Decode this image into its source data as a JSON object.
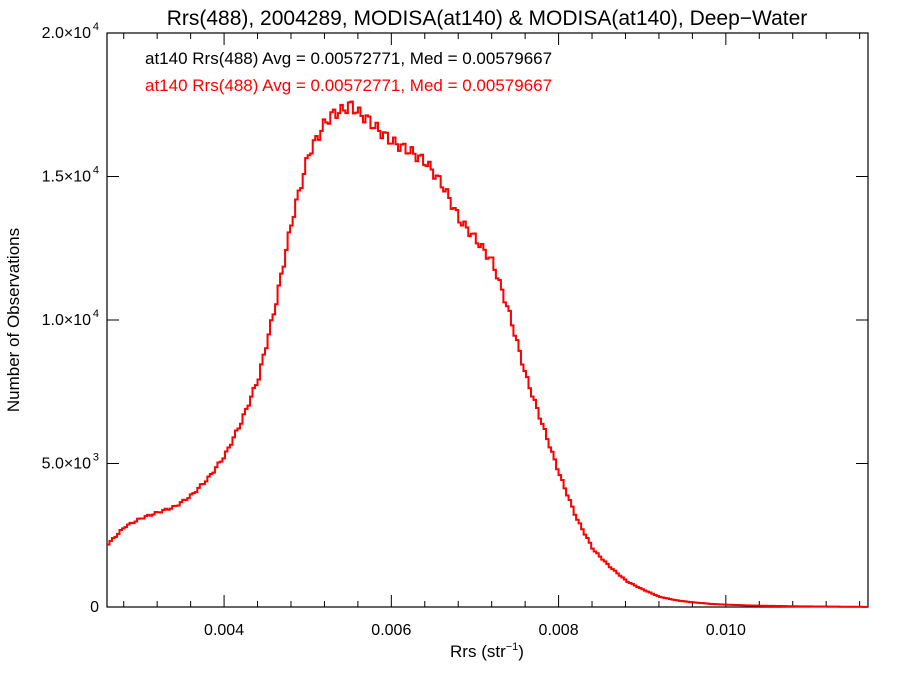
{
  "chart_data": {
    "type": "line",
    "title": "Rrs(488), 2004289, MODISA(at140) & MODISA(at140), Deep−Water",
    "xlabel": "Rrs (str",
    "xlabel_sup": "−1",
    "xlabel_suffix": ")",
    "ylabel": "Number of Observations",
    "xlim": [
      0.0026,
      0.0117
    ],
    "ylim": [
      0,
      20000
    ],
    "xticks": [
      {
        "value": 0.004,
        "label": "0.004"
      },
      {
        "value": 0.006,
        "label": "0.006"
      },
      {
        "value": 0.008,
        "label": "0.008"
      },
      {
        "value": 0.01,
        "label": "0.010"
      }
    ],
    "yticks": [
      {
        "value": 0,
        "label": "0",
        "exp": ""
      },
      {
        "value": 5000,
        "label": "5.0×10",
        "exp": "3"
      },
      {
        "value": 10000,
        "label": "1.0×10",
        "exp": "4"
      },
      {
        "value": 15000,
        "label": "1.5×10",
        "exp": "4"
      },
      {
        "value": 20000,
        "label": "2.0×10",
        "exp": "4"
      }
    ],
    "annotations": [
      {
        "text": "at140 Rrs(488) Avg = 0.00572771, Med = 0.00579667",
        "color": "#000000"
      },
      {
        "text": "at140 Rrs(488) Avg = 0.00572771, Med = 0.00579667",
        "color": "#ff0000"
      }
    ],
    "series": [
      {
        "color": "#000000",
        "x": [
          0.0026,
          0.0028,
          0.003,
          0.0032,
          0.0034,
          0.0036,
          0.0038,
          0.004,
          0.0042,
          0.0044,
          0.0046,
          0.0048,
          0.005,
          0.0052,
          0.0053,
          0.0054,
          0.0055,
          0.0056,
          0.0057,
          0.0058,
          0.006,
          0.0062,
          0.0064,
          0.0066,
          0.0068,
          0.007,
          0.0072,
          0.0074,
          0.0076,
          0.0078,
          0.008,
          0.0082,
          0.0084,
          0.0086,
          0.0088,
          0.009,
          0.0092,
          0.0094,
          0.0096,
          0.0098,
          0.01,
          0.0102,
          0.0104,
          0.0106,
          0.0108,
          0.011,
          0.0112,
          0.0114,
          0.0117
        ],
        "y": [
          2200,
          2800,
          3100,
          3300,
          3500,
          3900,
          4500,
          5300,
          6500,
          8000,
          10500,
          13500,
          15800,
          16900,
          17200,
          17300,
          17500,
          17200,
          17000,
          16700,
          16200,
          15900,
          15500,
          14700,
          13500,
          12800,
          12000,
          10200,
          8000,
          6300,
          4600,
          3100,
          2000,
          1400,
          900,
          600,
          350,
          230,
          160,
          110,
          80,
          60,
          45,
          35,
          25,
          20,
          15,
          10,
          5
        ]
      },
      {
        "color": "#ff0000",
        "x": [
          0.0026,
          0.0028,
          0.003,
          0.0032,
          0.0034,
          0.0036,
          0.0038,
          0.004,
          0.0042,
          0.0044,
          0.0046,
          0.0048,
          0.005,
          0.0052,
          0.0053,
          0.0054,
          0.0055,
          0.0056,
          0.0057,
          0.0058,
          0.006,
          0.0062,
          0.0064,
          0.0066,
          0.0068,
          0.007,
          0.0072,
          0.0074,
          0.0076,
          0.0078,
          0.008,
          0.0082,
          0.0084,
          0.0086,
          0.0088,
          0.009,
          0.0092,
          0.0094,
          0.0096,
          0.0098,
          0.01,
          0.0102,
          0.0104,
          0.0106,
          0.0108,
          0.011,
          0.0112,
          0.0114,
          0.0117
        ],
        "y": [
          2200,
          2800,
          3100,
          3300,
          3500,
          3900,
          4500,
          5300,
          6500,
          8000,
          10500,
          13500,
          15800,
          16900,
          17200,
          17300,
          17500,
          17200,
          17000,
          16700,
          16200,
          15900,
          15500,
          14700,
          13500,
          12800,
          12000,
          10200,
          8000,
          6300,
          4600,
          3100,
          2000,
          1400,
          900,
          600,
          350,
          230,
          160,
          110,
          80,
          60,
          45,
          35,
          25,
          20,
          15,
          10,
          5
        ]
      }
    ]
  }
}
